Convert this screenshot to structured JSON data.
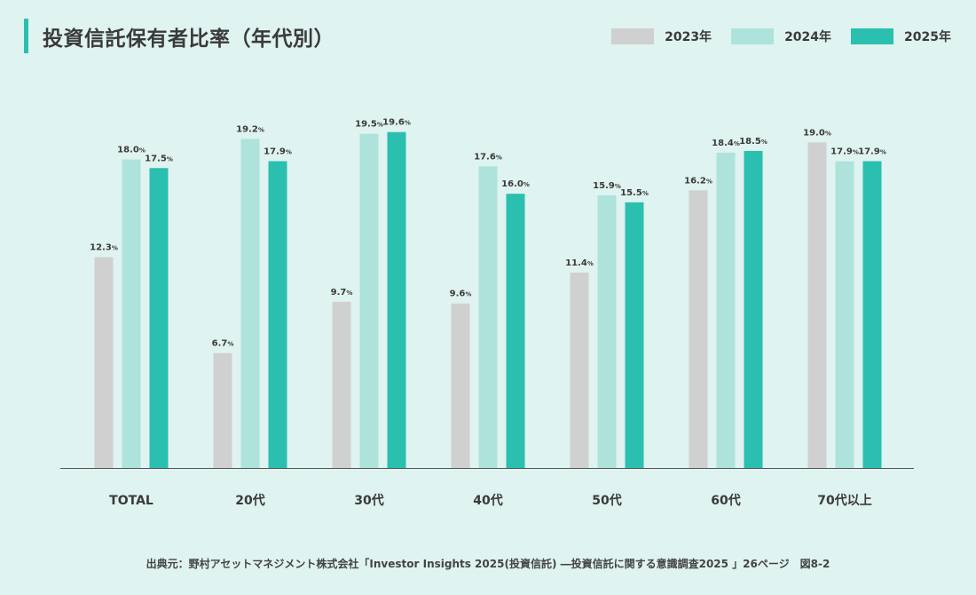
{
  "chart_data": {
    "type": "bar",
    "title": "投資信託保有者比率（年代別）",
    "categories": [
      "TOTAL",
      "20代",
      "30代",
      "40代",
      "50代",
      "60代",
      "70代以上"
    ],
    "series": [
      {
        "name": "2023年",
        "color": "#d0d0d0",
        "values": [
          12.3,
          6.7,
          9.7,
          9.6,
          11.4,
          16.2,
          19.0
        ]
      },
      {
        "name": "2024年",
        "color": "#aee3dc",
        "values": [
          18.0,
          19.2,
          19.5,
          17.6,
          15.9,
          18.4,
          17.9
        ]
      },
      {
        "name": "2025年",
        "color": "#2bbfaf",
        "values": [
          17.5,
          17.9,
          19.6,
          16.0,
          15.5,
          18.5,
          17.9
        ]
      }
    ],
    "value_unit": "%",
    "ylim": [
      0,
      20
    ],
    "grid": false,
    "legend_position": "top-right",
    "source": "出典元：野村アセットマネジメント株式会社「Investor Insights 2025(投資信託) ―投資信託に関する意識調査2025 」26ページ　図8-2"
  },
  "colors": {
    "background": "#dff3f0",
    "accent": "#2bbfaf"
  }
}
